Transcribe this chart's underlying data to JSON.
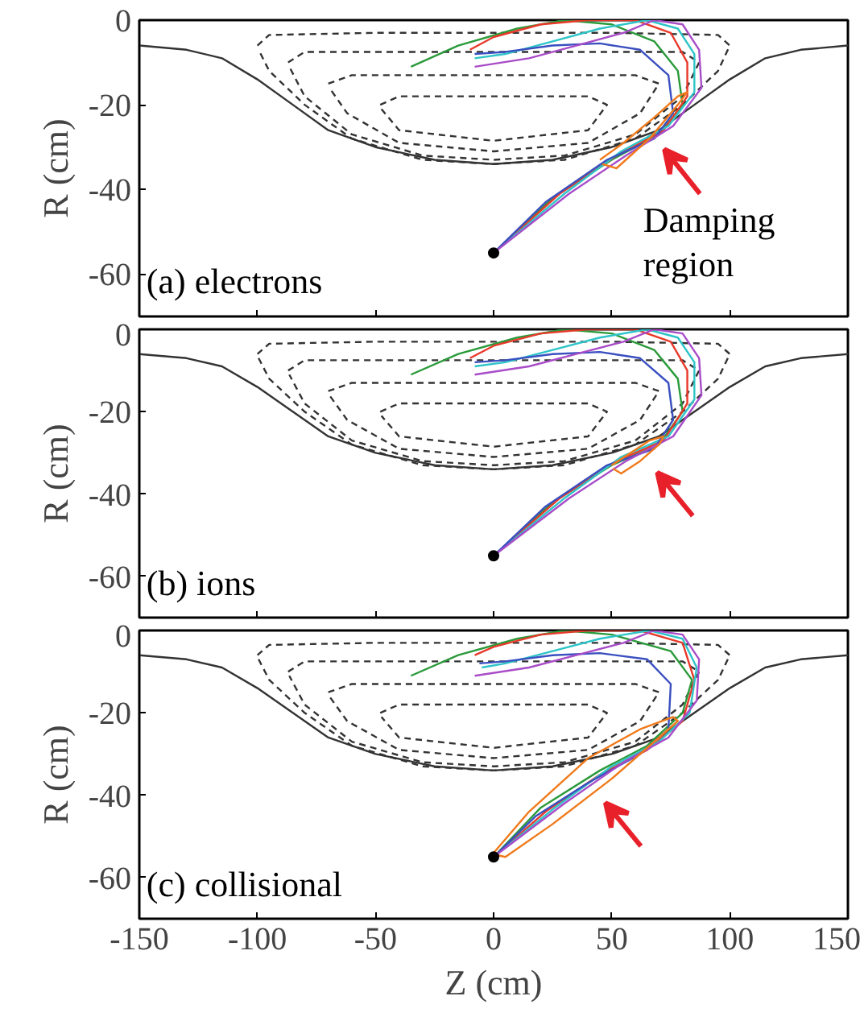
{
  "chart_data": [
    {
      "type": "line",
      "ylabel": "R (cm)",
      "xlim": [
        -150,
        150
      ],
      "xticks": [
        -150,
        -100,
        -50,
        0,
        50,
        100,
        150
      ],
      "ylim": [
        -70,
        0
      ],
      "yticks": [
        0,
        -20,
        -40,
        -60
      ],
      "tick_labels": "y",
      "grid": false,
      "annotations": [
        "(a) electrons",
        "Damping region"
      ],
      "series": [
        {
          "color": "#333333",
          "line_style": "solid",
          "x": [
            -150,
            -130,
            -115,
            -100,
            -85,
            -70,
            -50,
            -25,
            0,
            25,
            50,
            70,
            85,
            100,
            115,
            130,
            150
          ],
          "values": [
            -6,
            -7,
            -9,
            -14,
            -20,
            -26,
            -30,
            -33,
            -34,
            -33,
            -30,
            -26,
            -20,
            -14,
            -9,
            -7,
            -6
          ]
        },
        {
          "color": "#333333",
          "line_style": "dashed",
          "x": [
            -100,
            -95,
            -50,
            0,
            50,
            95,
            100,
            95,
            80,
            60,
            30,
            0,
            -30,
            -60,
            -80,
            -95,
            -99.5
          ],
          "values": [
            -6,
            -3.5,
            -3,
            -3,
            -3,
            -3.5,
            -6,
            -12,
            -20,
            -28,
            -33,
            -34,
            -33,
            -28,
            -20,
            -12,
            -7
          ]
        },
        {
          "color": "#333333",
          "line_style": "dashed",
          "x": [
            -87,
            -80,
            0,
            80,
            87,
            80,
            60,
            30,
            0,
            -30,
            -60,
            -80,
            -86.5
          ],
          "values": [
            -10,
            -7.5,
            -7.5,
            -7.5,
            -10,
            -18,
            -27,
            -32,
            -33,
            -32,
            -27,
            -18,
            -11
          ]
        },
        {
          "color": "#333333",
          "line_style": "dashed",
          "x": [
            -70,
            -60,
            0,
            60,
            70,
            62,
            40,
            0,
            -40,
            -62,
            -69.5
          ],
          "values": [
            -15,
            -13,
            -13,
            -13,
            -15,
            -22,
            -29,
            -31,
            -29,
            -22,
            -16
          ]
        },
        {
          "color": "#333333",
          "line_style": "dashed",
          "x": [
            -48,
            -40,
            0,
            40,
            48,
            40,
            0,
            -40,
            -47.5
          ],
          "values": [
            -20,
            -18,
            -18,
            -18,
            -20,
            -26,
            -28.5,
            -26,
            -21
          ]
        },
        {
          "color": "#2a9a3a",
          "line_style": "solid",
          "x": [
            0,
            25,
            50,
            70,
            80,
            78,
            68,
            50,
            30,
            10,
            -15,
            -35
          ],
          "values": [
            -55,
            -42,
            -33,
            -27,
            -20,
            -12,
            -5,
            -1,
            0,
            -2,
            -6,
            -11
          ]
        },
        {
          "color": "#e8392a",
          "line_style": "solid",
          "x": [
            0,
            28,
            52,
            72,
            82,
            82,
            75,
            60,
            40,
            20,
            0,
            -10
          ],
          "values": [
            -55,
            -41,
            -32,
            -26,
            -18,
            -10,
            -3,
            0,
            0,
            -1,
            -4,
            -7
          ]
        },
        {
          "color": "#2ec4c8",
          "line_style": "solid",
          "x": [
            0,
            30,
            54,
            74,
            85,
            85,
            78,
            65,
            45,
            25,
            5,
            -8
          ],
          "values": [
            -55,
            -41,
            -31,
            -25,
            -17,
            -8,
            -2,
            0,
            -2,
            -5,
            -8,
            -9
          ]
        },
        {
          "color": "#3a4fc0",
          "line_style": "solid",
          "x": [
            0,
            22,
            48,
            68,
            76,
            74,
            62,
            45,
            25,
            5,
            -8
          ],
          "values": [
            -55,
            -43,
            -33,
            -28,
            -22,
            -13,
            -7,
            -5.5,
            -6,
            -7.5,
            -8
          ]
        },
        {
          "color": "#a84cc8",
          "line_style": "solid",
          "x": [
            0,
            32,
            56,
            76,
            88,
            87,
            80,
            68,
            55,
            35,
            15,
            -8
          ],
          "values": [
            -55,
            -41,
            -32,
            -25,
            -16,
            -7,
            -1,
            0,
            -3,
            -6,
            -9,
            -11
          ]
        },
        {
          "color": "#f07a1a",
          "line_style": "solid",
          "x": [
            45,
            55,
            68,
            78,
            82,
            78,
            66,
            52,
            46
          ],
          "values": [
            -33,
            -29,
            -23,
            -18,
            -17,
            -20,
            -28,
            -35,
            -34
          ]
        },
        {
          "type": "scatter",
          "marker": "circle",
          "color": "#000000",
          "x": [
            0
          ],
          "values": [
            -55
          ]
        }
      ]
    },
    {
      "type": "line",
      "ylabel": "R (cm)",
      "xlim": [
        -150,
        150
      ],
      "xticks": [
        -150,
        -100,
        -50,
        0,
        50,
        100,
        150
      ],
      "ylim": [
        -70,
        0
      ],
      "yticks": [
        0,
        -20,
        -40,
        -60
      ],
      "tick_labels": "y",
      "grid": false,
      "annotations": [
        "(b) ions"
      ],
      "series": [
        {
          "color": "#333333",
          "line_style": "solid",
          "x": [
            -150,
            -130,
            -115,
            -100,
            -85,
            -70,
            -50,
            -25,
            0,
            25,
            50,
            70,
            85,
            100,
            115,
            130,
            150
          ],
          "values": [
            -6,
            -7,
            -9,
            -14,
            -20,
            -26,
            -30,
            -33,
            -34,
            -33,
            -30,
            -26,
            -20,
            -14,
            -9,
            -7,
            -6
          ]
        },
        {
          "color": "#333333",
          "line_style": "dashed",
          "x": [
            -100,
            -95,
            -50,
            0,
            50,
            95,
            100,
            95,
            80,
            60,
            30,
            0,
            -30,
            -60,
            -80,
            -95,
            -99.5
          ],
          "values": [
            -6,
            -3.5,
            -3,
            -3,
            -3,
            -3.5,
            -6,
            -12,
            -20,
            -28,
            -33,
            -34,
            -33,
            -28,
            -20,
            -12,
            -7
          ]
        },
        {
          "color": "#333333",
          "line_style": "dashed",
          "x": [
            -87,
            -80,
            0,
            80,
            87,
            80,
            60,
            30,
            0,
            -30,
            -60,
            -80,
            -86.5
          ],
          "values": [
            -10,
            -7.5,
            -7.5,
            -7.5,
            -10,
            -18,
            -27,
            -32,
            -33,
            -32,
            -27,
            -18,
            -11
          ]
        },
        {
          "color": "#333333",
          "line_style": "dashed",
          "x": [
            -70,
            -60,
            0,
            60,
            70,
            62,
            40,
            0,
            -40,
            -62,
            -69.5
          ],
          "values": [
            -15,
            -13,
            -13,
            -13,
            -15,
            -22,
            -29,
            -31,
            -29,
            -22,
            -16
          ]
        },
        {
          "color": "#333333",
          "line_style": "dashed",
          "x": [
            -48,
            -40,
            0,
            40,
            48,
            40,
            0,
            -40,
            -47.5
          ],
          "values": [
            -20,
            -18,
            -18,
            -18,
            -20,
            -26,
            -28.5,
            -26,
            -21
          ]
        },
        {
          "color": "#2a9a3a",
          "line_style": "solid",
          "x": [
            0,
            25,
            50,
            70,
            80,
            78,
            68,
            50,
            30,
            10,
            -15,
            -35
          ],
          "values": [
            -55,
            -42,
            -33,
            -28,
            -20,
            -12,
            -5,
            -1,
            0,
            -2,
            -6,
            -11
          ]
        },
        {
          "color": "#e8392a",
          "line_style": "solid",
          "x": [
            0,
            28,
            52,
            72,
            82,
            82,
            75,
            60,
            40,
            20,
            0,
            -10
          ],
          "values": [
            -55,
            -41,
            -32,
            -27,
            -18,
            -10,
            -3,
            0,
            0,
            -1,
            -4,
            -7
          ]
        },
        {
          "color": "#2ec4c8",
          "line_style": "solid",
          "x": [
            0,
            30,
            54,
            74,
            85,
            85,
            78,
            65,
            45,
            25,
            5,
            -8
          ],
          "values": [
            -55,
            -41,
            -31,
            -26,
            -17,
            -8,
            -2,
            0,
            -2,
            -5,
            -8,
            -9
          ]
        },
        {
          "color": "#3a4fc0",
          "line_style": "solid",
          "x": [
            0,
            22,
            48,
            68,
            76,
            74,
            62,
            45,
            25,
            5,
            -8
          ],
          "values": [
            -55,
            -43,
            -33,
            -29,
            -22,
            -13,
            -7,
            -5.5,
            -6,
            -7.5,
            -8
          ]
        },
        {
          "color": "#a84cc8",
          "line_style": "solid",
          "x": [
            0,
            32,
            56,
            76,
            88,
            87,
            80,
            68,
            55,
            35,
            15,
            -8
          ],
          "values": [
            -55,
            -41,
            -32,
            -26,
            -16,
            -7,
            -1,
            0,
            -3,
            -6,
            -9,
            -11
          ]
        },
        {
          "color": "#f07a1a",
          "line_style": "solid",
          "x": [
            50,
            58,
            66,
            72,
            70,
            62,
            54,
            50.5
          ],
          "values": [
            -33,
            -30,
            -27,
            -26,
            -28,
            -32,
            -35,
            -33.8
          ]
        },
        {
          "type": "scatter",
          "marker": "circle",
          "color": "#000000",
          "x": [
            0
          ],
          "values": [
            -55
          ]
        }
      ]
    },
    {
      "type": "line",
      "xlabel": "Z (cm)",
      "ylabel": "R (cm)",
      "xlim": [
        -150,
        150
      ],
      "xticks": [
        -150,
        -100,
        -50,
        0,
        50,
        100,
        150
      ],
      "ylim": [
        -70,
        0
      ],
      "yticks": [
        0,
        -20,
        -40,
        -60
      ],
      "grid": false,
      "annotations": [
        "(c) collisional"
      ],
      "series": [
        {
          "color": "#333333",
          "line_style": "solid",
          "x": [
            -150,
            -130,
            -115,
            -100,
            -85,
            -70,
            -50,
            -25,
            0,
            25,
            50,
            70,
            85,
            100,
            115,
            130,
            150
          ],
          "values": [
            -6,
            -7,
            -9,
            -14,
            -20,
            -26,
            -30,
            -33,
            -34,
            -33,
            -30,
            -26,
            -20,
            -14,
            -9,
            -7,
            -6
          ]
        },
        {
          "color": "#333333",
          "line_style": "dashed",
          "x": [
            -100,
            -95,
            -50,
            0,
            50,
            95,
            100,
            95,
            80,
            60,
            30,
            0,
            -30,
            -60,
            -80,
            -95,
            -99.5
          ],
          "values": [
            -6,
            -3.5,
            -3,
            -3,
            -3,
            -3.5,
            -6,
            -12,
            -20,
            -28,
            -33,
            -34,
            -33,
            -28,
            -20,
            -12,
            -7
          ]
        },
        {
          "color": "#333333",
          "line_style": "dashed",
          "x": [
            -87,
            -80,
            0,
            80,
            87,
            80,
            60,
            30,
            0,
            -30,
            -60,
            -80,
            -86.5
          ],
          "values": [
            -10,
            -7.5,
            -7.5,
            -7.5,
            -10,
            -18,
            -27,
            -32,
            -33,
            -32,
            -27,
            -18,
            -11
          ]
        },
        {
          "color": "#333333",
          "line_style": "dashed",
          "x": [
            -70,
            -60,
            0,
            60,
            70,
            62,
            40,
            0,
            -40,
            -62,
            -69.5
          ],
          "values": [
            -15,
            -13,
            -13,
            -13,
            -15,
            -22,
            -29,
            -31,
            -29,
            -22,
            -16
          ]
        },
        {
          "color": "#333333",
          "line_style": "dashed",
          "x": [
            -48,
            -40,
            0,
            40,
            48,
            40,
            0,
            -40,
            -47.5
          ],
          "values": [
            -20,
            -18,
            -18,
            -18,
            -20,
            -26,
            -28.5,
            -26,
            -21
          ]
        },
        {
          "color": "#2a9a3a",
          "line_style": "solid",
          "x": [
            0,
            20,
            45,
            65,
            80,
            84,
            75,
            50,
            30,
            10,
            -15,
            -35
          ],
          "values": [
            -55,
            -43,
            -34,
            -28,
            -20,
            -12,
            -5,
            -1,
            0,
            -2,
            -6,
            -11
          ]
        },
        {
          "color": "#e8392a",
          "line_style": "solid",
          "x": [
            0,
            22,
            45,
            65,
            80,
            85,
            80,
            62,
            40,
            20,
            0,
            -8
          ],
          "values": [
            -55,
            -44,
            -35,
            -29,
            -22,
            -12,
            -3,
            0,
            0,
            -1,
            -4,
            -6
          ]
        },
        {
          "color": "#2ec4c8",
          "line_style": "solid",
          "x": [
            0,
            26,
            50,
            70,
            83,
            86,
            80,
            66,
            45,
            25,
            5,
            -5
          ],
          "values": [
            -55,
            -43,
            -33,
            -27,
            -20,
            -9,
            -2,
            0,
            -2,
            -5,
            -8,
            -9
          ]
        },
        {
          "color": "#3a4fc0",
          "line_style": "solid",
          "x": [
            0,
            18,
            40,
            62,
            74,
            75,
            65,
            45,
            25,
            5,
            -6
          ],
          "values": [
            -55,
            -45,
            -37,
            -30,
            -24,
            -13,
            -7,
            -5.5,
            -6,
            -7.5,
            -8
          ]
        },
        {
          "color": "#a84cc8",
          "line_style": "solid",
          "x": [
            0,
            30,
            55,
            74,
            86,
            87,
            80,
            68,
            55,
            35,
            15,
            -8
          ],
          "values": [
            -55,
            -42,
            -32,
            -26,
            -17,
            -7,
            -1,
            0,
            -3,
            -6,
            -9,
            -11
          ]
        },
        {
          "color": "#f07a1a",
          "line_style": "solid",
          "x": [
            0,
            15,
            40,
            62,
            76,
            78,
            70,
            50,
            25,
            5,
            1
          ],
          "values": [
            -54,
            -44,
            -31,
            -24,
            -21,
            -22,
            -26,
            -36,
            -47,
            -55,
            -54.5
          ]
        },
        {
          "type": "scatter",
          "marker": "circle",
          "color": "#000000",
          "x": [
            0
          ],
          "values": [
            -55
          ]
        }
      ]
    }
  ]
}
